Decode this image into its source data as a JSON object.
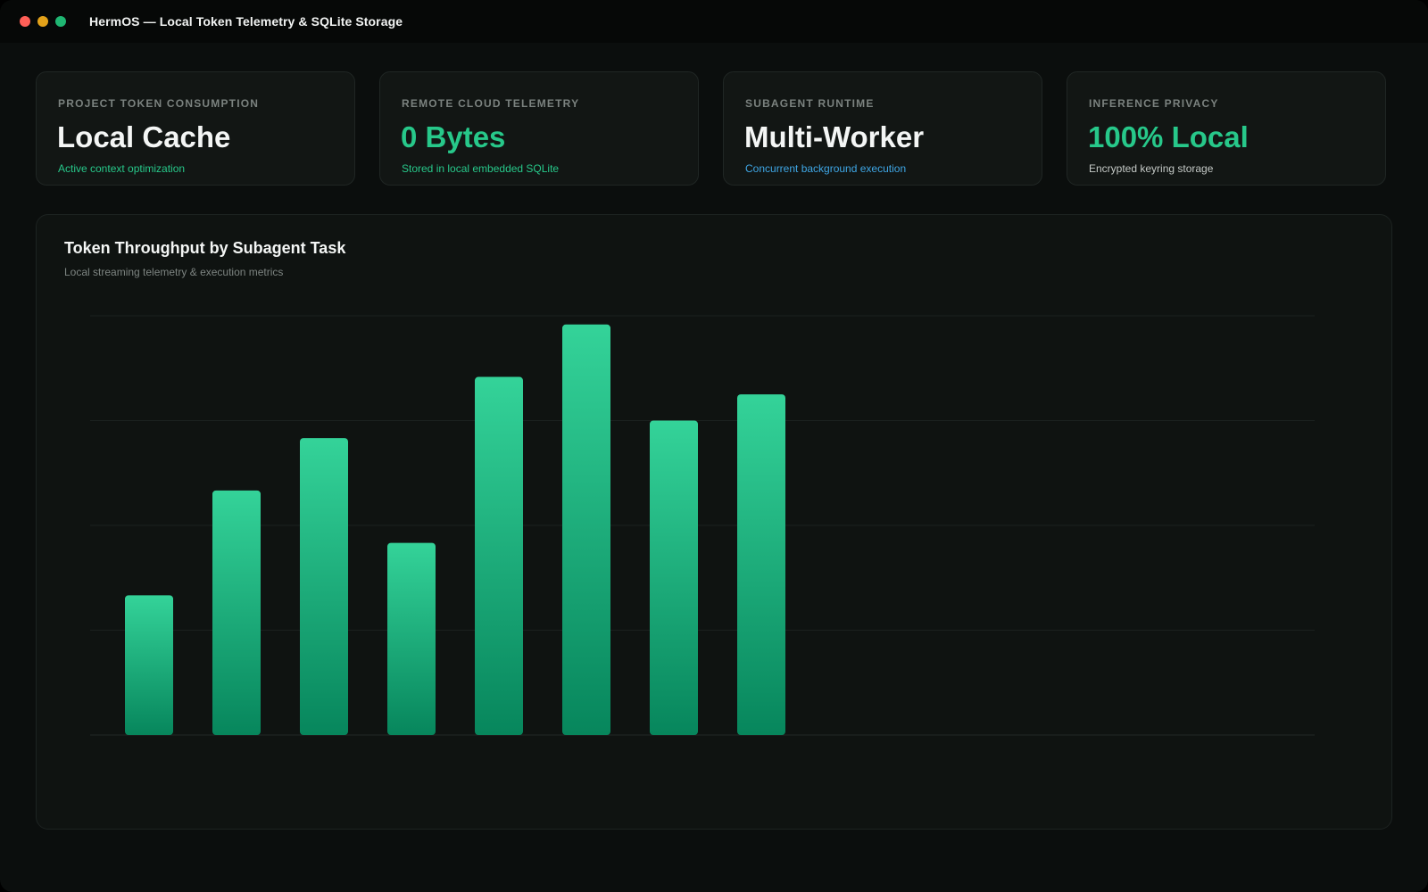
{
  "window": {
    "title": "HermOS — Local Token Telemetry & SQLite Storage",
    "controls": {
      "close_color": "#ff5f57",
      "minimize_color": "#e3a21a",
      "maximize_color": "#1fb672"
    }
  },
  "colors": {
    "accent_green": "#27c88a",
    "accent_blue": "#3fa7e6",
    "muted_text": "#c4c9c6"
  },
  "cards": [
    {
      "label": "PROJECT TOKEN CONSUMPTION",
      "value": "Local Cache",
      "sub": "Active context optimization",
      "value_color": "#f4f6f5",
      "sub_color": "#27c88a"
    },
    {
      "label": "REMOTE CLOUD TELEMETRY",
      "value": "0 Bytes",
      "sub": "Stored in local embedded SQLite",
      "value_color": "#27c88a",
      "sub_color": "#27c88a"
    },
    {
      "label": "SUBAGENT RUNTIME",
      "value": "Multi-Worker",
      "sub": "Concurrent background execution",
      "value_color": "#f4f6f5",
      "sub_color": "#3fa7e6"
    },
    {
      "label": "INFERENCE PRIVACY",
      "value": "100% Local",
      "sub": "Encrypted keyring storage",
      "value_color": "#27c88a",
      "sub_color": "#c4c9c6"
    }
  ],
  "panel": {
    "title": "Token Throughput by Subagent Task",
    "subtitle": "Local streaming telemetry & execution metrics"
  },
  "chart_data": {
    "type": "bar",
    "title": "Token Throughput by Subagent Task",
    "xlabel": "",
    "ylabel": "",
    "categories": [
      "",
      "",
      "",
      "",
      "",
      "",
      "",
      ""
    ],
    "values": [
      40,
      70,
      85,
      55,
      102.5,
      117.5,
      90,
      97.5
    ],
    "ylim": [
      0,
      120
    ],
    "grid": true,
    "legend": "none",
    "bar_color_top": "#34d399",
    "bar_color_bottom": "#07865c"
  }
}
